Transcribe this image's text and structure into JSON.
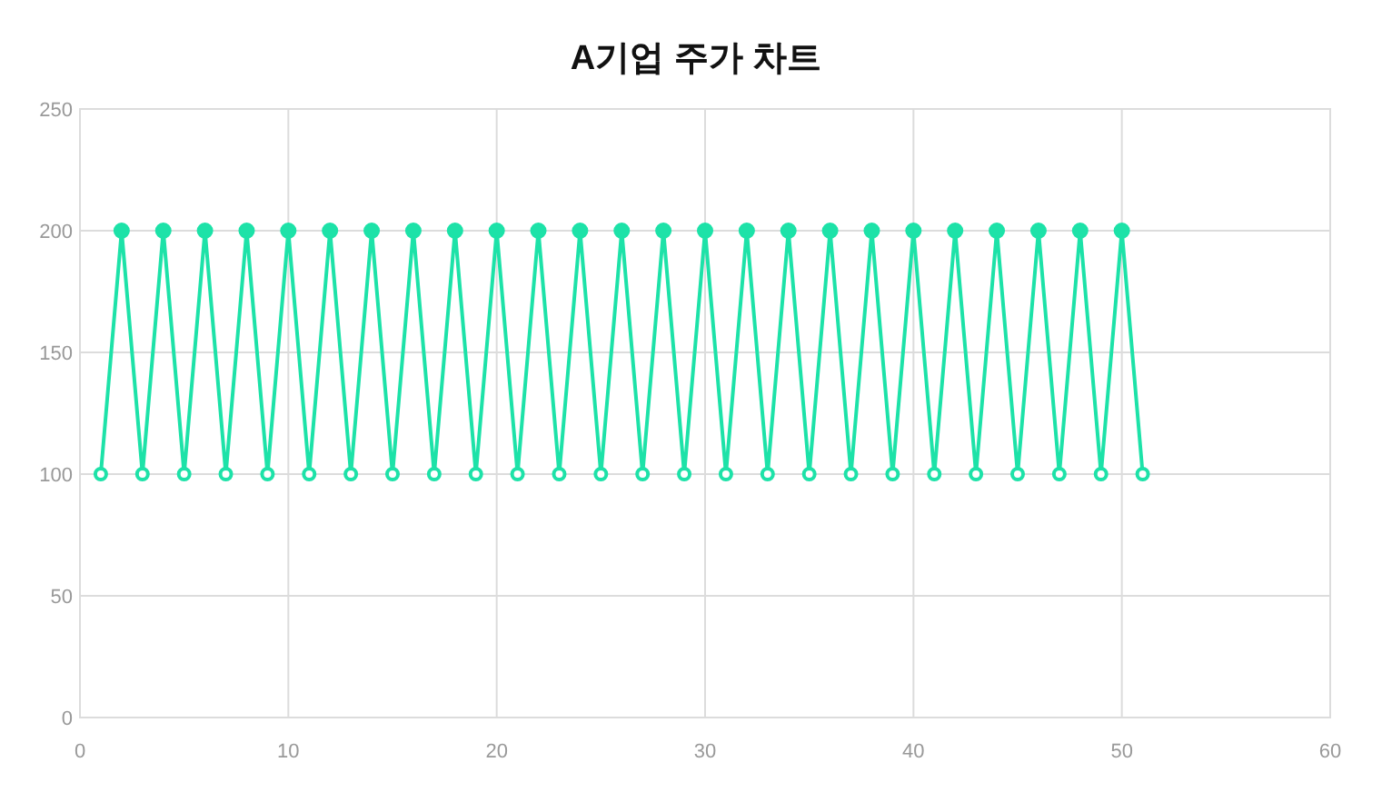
{
  "chart_data": {
    "type": "line",
    "title": "A기업 주가 차트",
    "x": [
      1,
      2,
      3,
      4,
      5,
      6,
      7,
      8,
      9,
      10,
      11,
      12,
      13,
      14,
      15,
      16,
      17,
      18,
      19,
      20,
      21,
      22,
      23,
      24,
      25,
      26,
      27,
      28,
      29,
      30,
      31,
      32,
      33,
      34,
      35,
      36,
      37,
      38,
      39,
      40,
      41,
      42,
      43,
      44,
      45,
      46,
      47,
      48,
      49,
      50,
      51
    ],
    "series": [
      {
        "color": "#1de2a8",
        "values": [
          100,
          200,
          100,
          200,
          100,
          200,
          100,
          200,
          100,
          200,
          100,
          200,
          100,
          200,
          100,
          200,
          100,
          200,
          100,
          200,
          100,
          200,
          100,
          200,
          100,
          200,
          100,
          200,
          100,
          200,
          100,
          200,
          100,
          200,
          100,
          200,
          100,
          200,
          100,
          200,
          100,
          200,
          100,
          200,
          100,
          200,
          100,
          200,
          100,
          200,
          100
        ]
      }
    ],
    "xlim": [
      0,
      60
    ],
    "xticks": [
      0,
      10,
      20,
      30,
      40,
      50,
      60
    ],
    "ylim": [
      0,
      250
    ],
    "yticks": [
      0,
      50,
      100,
      150,
      200,
      250
    ],
    "grid": true,
    "marker": "circle",
    "line_style": "solid"
  }
}
